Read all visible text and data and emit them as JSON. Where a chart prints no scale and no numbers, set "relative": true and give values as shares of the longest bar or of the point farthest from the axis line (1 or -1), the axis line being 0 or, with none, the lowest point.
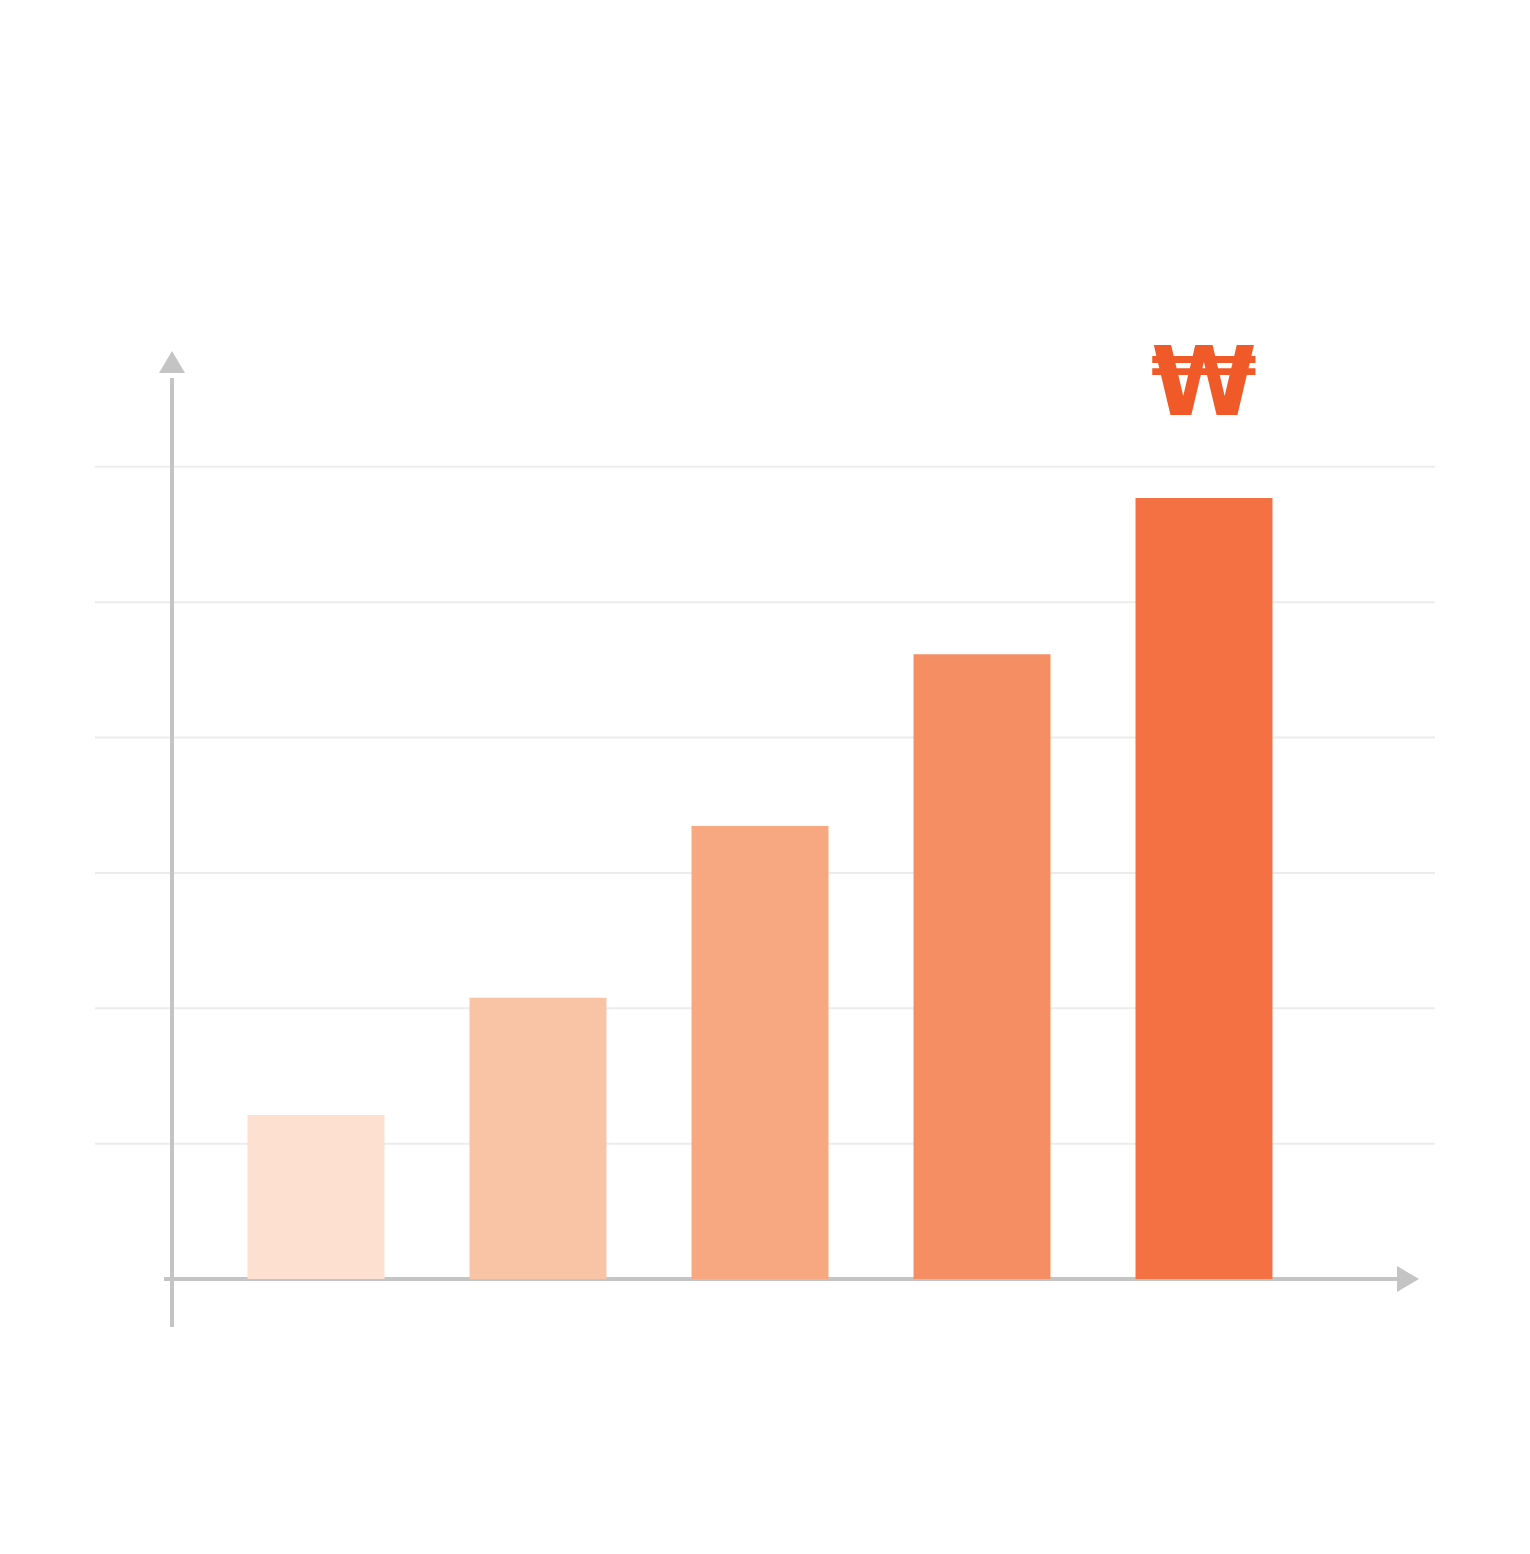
{
  "chart_data": {
    "type": "bar",
    "relative": true,
    "categories": [
      null,
      null,
      null,
      null,
      null
    ],
    "values": [
      0.21,
      0.36,
      0.58,
      0.8,
      1
    ],
    "colors": [
      "#fde0d0",
      "#f9c3a6",
      "#f8a880",
      "#f58f63",
      "#f37142"
    ],
    "annotations": [
      "₩"
    ],
    "grid": true
  }
}
